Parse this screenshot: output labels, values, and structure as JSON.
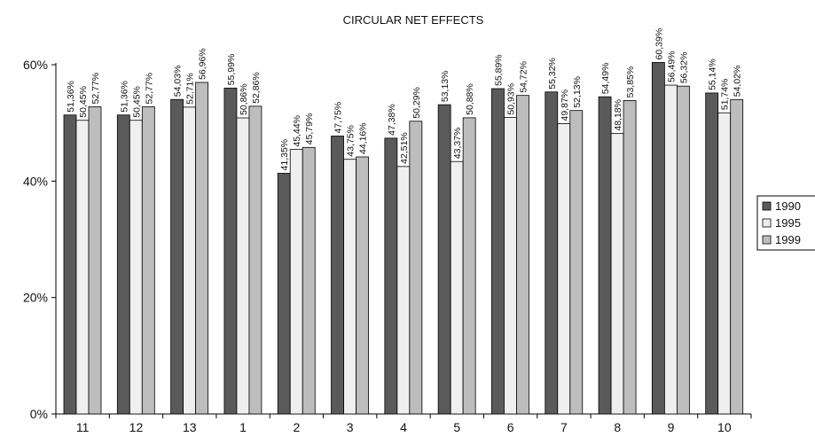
{
  "chart_data": {
    "type": "bar",
    "title": "CIRCULAR NET EFFECTS",
    "xlabel": "",
    "ylabel": "",
    "ylim": [
      0,
      0.6
    ],
    "y_ticks": [
      "0%",
      "20%",
      "40%",
      "60%"
    ],
    "y_tick_values": [
      0,
      0.2,
      0.4,
      0.6
    ],
    "grid": false,
    "legend_position": "right",
    "categories": [
      "11",
      "12",
      "13",
      "1",
      "2",
      "3",
      "4",
      "5",
      "6",
      "7",
      "8",
      "9",
      "10"
    ],
    "series": [
      {
        "name": "1990",
        "color": "#5a5a5a",
        "values": [
          0.5136,
          0.5136,
          0.5403,
          0.5599,
          0.4135,
          0.4775,
          0.4738,
          0.5313,
          0.5589,
          0.5532,
          0.5449,
          0.6039,
          0.5514
        ],
        "labels": [
          "51,36%",
          "51,36%",
          "54,03%",
          "55,99%",
          "41,35%",
          "47,75%",
          "47,38%",
          "53,13%",
          "55,89%",
          "55,32%",
          "54,49%",
          "60,39%",
          "55,14%"
        ]
      },
      {
        "name": "1995",
        "color": "#efefef",
        "values": [
          0.5045,
          0.5045,
          0.5271,
          0.5086,
          0.4544,
          0.4375,
          0.4251,
          0.4337,
          0.5093,
          0.4987,
          0.4818,
          0.5649,
          0.5174
        ],
        "labels": [
          "50,45%",
          "50,45%",
          "52,71%",
          "50,86%",
          "45,44%",
          "43,75%",
          "42,51%",
          "43,37%",
          "50,93%",
          "49,87%",
          "48,18%",
          "56,49%",
          "51,74%"
        ]
      },
      {
        "name": "1999",
        "color": "#bdbdbd",
        "values": [
          0.5277,
          0.5277,
          0.5696,
          0.5286,
          0.4579,
          0.4416,
          0.5029,
          0.5088,
          0.5472,
          0.5213,
          0.5385,
          0.5632,
          0.5402
        ],
        "labels": [
          "52,77%",
          "52,77%",
          "56,96%",
          "52,86%",
          "45,79%",
          "44,16%",
          "50,29%",
          "50,88%",
          "54,72%",
          "52,13%",
          "53,85%",
          "56,32%",
          "54,02%"
        ]
      }
    ]
  }
}
